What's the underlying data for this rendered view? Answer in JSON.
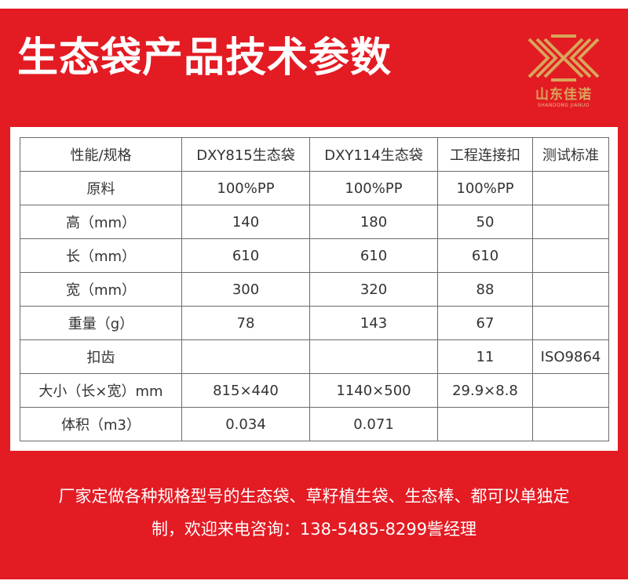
{
  "header": {
    "title": "生态袋产品技术参数"
  },
  "logo": {
    "name_cn": "山东佳诺",
    "name_en": "SHANDONG JIANUO",
    "color": "#d8a55a"
  },
  "colors": {
    "background_red": "#e31b23",
    "text_white": "#ffffff",
    "table_border": "#6b6b6b"
  },
  "table": {
    "headers": [
      "性能/规格",
      "DXY815生态袋",
      "DXY114生态袋",
      "工程连接扣",
      "测试标准"
    ],
    "rows": [
      [
        "原料",
        "100%PP",
        "100%PP",
        "100%PP",
        ""
      ],
      [
        "高（mm）",
        "140",
        "180",
        "50",
        ""
      ],
      [
        "长（mm）",
        "610",
        "610",
        "610",
        ""
      ],
      [
        "宽（mm）",
        "300",
        "320",
        "88",
        ""
      ],
      [
        "重量（g）",
        "78",
        "143",
        "67",
        ""
      ],
      [
        "扣齿",
        "",
        "",
        "11",
        "ISO9864"
      ],
      [
        "大小（长×宽）mm",
        "815×440",
        "1140×500",
        "29.9×8.8",
        ""
      ],
      [
        "体积（m3）",
        "0.034",
        "0.071",
        "",
        ""
      ]
    ]
  },
  "footer": {
    "line1": "厂家定做各种规格型号的生态袋、草籽植生袋、生态棒、都可以单独定",
    "line2": "制，欢迎来电咨询：138-5485-8299訾经理"
  }
}
